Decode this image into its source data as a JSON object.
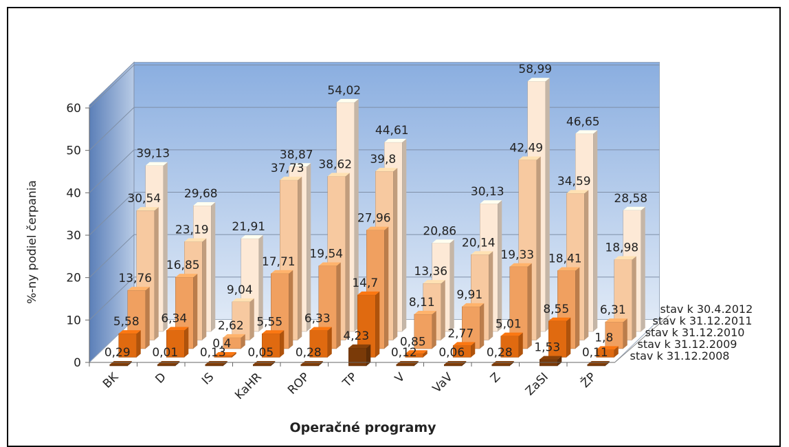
{
  "chart_data": {
    "type": "bar",
    "variant": "3d-clustered-depth",
    "ylabel": "%-ny podiel čerpania",
    "xlabel": "Operačné programy",
    "ylim": [
      0,
      60
    ],
    "yticks": [
      "0",
      "10",
      "20",
      "30",
      "40",
      "50",
      "60"
    ],
    "grid": true,
    "categories": [
      "BK",
      "D",
      "IS",
      "KaHR",
      "ROP",
      "TP",
      "V",
      "VaV",
      "Z",
      "ZaSI",
      "ŽP"
    ],
    "series": [
      {
        "name": "stav k 31.12.2008",
        "color": "#7a3a08",
        "values": [
          0.29,
          0.01,
          0.13,
          0.05,
          0.28,
          4.23,
          0.12,
          0.06,
          0.28,
          1.53,
          0.11
        ],
        "labels": [
          "0,29",
          "0,01",
          "0,13",
          "0,05",
          "0,28",
          "4,23",
          "0,12",
          "0,06",
          "0,28",
          "1,53",
          "0,11"
        ]
      },
      {
        "name": "stav k 31.12.2009",
        "color": "#e06a10",
        "values": [
          5.58,
          6.34,
          0.4,
          5.55,
          6.33,
          14.7,
          0.85,
          2.77,
          5.01,
          8.55,
          1.8
        ],
        "labels": [
          "5,58",
          "6,34",
          "0,4",
          "5,55",
          "6,33",
          "14,7",
          "0,85",
          "2,77",
          "5,01",
          "8,55",
          "1,8"
        ]
      },
      {
        "name": "stav k 31.12.2010",
        "color": "#f0a060",
        "values": [
          13.76,
          16.85,
          2.62,
          17.71,
          19.54,
          27.96,
          8.11,
          9.91,
          19.33,
          18.41,
          6.31
        ],
        "labels": [
          "13,76",
          "16,85",
          "2,62",
          "17,71",
          "19,54",
          "27,96",
          "8,11",
          "9,91",
          "19,33",
          "18,41",
          "6,31"
        ]
      },
      {
        "name": "stav k 31.12.2011",
        "color": "#f7c9a0",
        "values": [
          30.54,
          23.19,
          9.04,
          37.73,
          38.62,
          39.8,
          13.36,
          20.14,
          42.49,
          34.59,
          18.98
        ],
        "labels": [
          "30,54",
          "23,19",
          "9,04",
          "37,73",
          "38,62",
          "39,8",
          "13,36",
          "20,14",
          "42,49",
          "34,59",
          "18,98"
        ]
      },
      {
        "name": "stav k 30.4.2012",
        "color": "#fde9d6",
        "values": [
          39.13,
          29.68,
          21.91,
          38.87,
          54.02,
          44.61,
          20.86,
          30.13,
          58.99,
          46.65,
          28.58
        ],
        "labels": [
          "39,13",
          "29,68",
          "21,91",
          "38,87",
          "54,02",
          "44,61",
          "20,86",
          "30,13",
          "58,99",
          "46,65",
          "28,58"
        ]
      }
    ]
  }
}
